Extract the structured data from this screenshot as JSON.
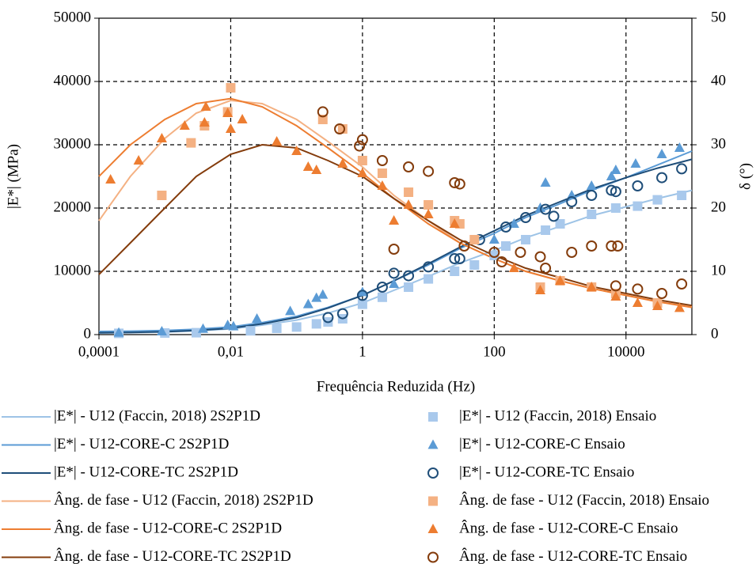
{
  "chart_data": {
    "type": "line",
    "xlabel": "Frequência Reduzida (Hz)",
    "ylabel": "|E*| (MPa)",
    "y2label": "δ (°)",
    "xscale": "log",
    "grid": true,
    "xlim": [
      0.0001,
      100000
    ],
    "xticks": [
      {
        "value": 0.0001,
        "label": "0,0001"
      },
      {
        "value": 0.01,
        "label": "0,01"
      },
      1,
      100,
      10000
    ],
    "ylim": [
      0,
      50000
    ],
    "yticks": [
      0,
      10000,
      20000,
      30000,
      40000,
      50000
    ],
    "y2lim": [
      0,
      50
    ],
    "y2ticks": [
      0,
      10,
      20,
      30,
      40,
      50
    ],
    "series": [
      {
        "name": "|E*| - U12 (Faccin, 2018) 2S2P1D",
        "color": "#9dc3e6",
        "marker": "line",
        "axis": "y",
        "x": [
          0.0001,
          0.0003,
          0.001,
          0.003,
          0.01,
          0.03,
          0.1,
          0.3,
          1,
          3,
          10,
          30,
          100,
          300,
          1000,
          3000,
          10000,
          30000,
          100000
        ],
        "values": [
          250,
          300,
          400,
          600,
          900,
          1500,
          2300,
          3400,
          5000,
          7000,
          9200,
          11300,
          13300,
          15300,
          17100,
          18800,
          20200,
          21500,
          22800
        ]
      },
      {
        "name": "|E*| - U12-CORE-C 2S2P1D",
        "color": "#5b9bd5",
        "marker": "line",
        "axis": "y",
        "x": [
          0.0001,
          0.0003,
          0.001,
          0.003,
          0.01,
          0.03,
          0.1,
          0.3,
          1,
          3,
          10,
          30,
          100,
          300,
          1000,
          3000,
          10000,
          30000,
          100000
        ],
        "values": [
          500,
          550,
          650,
          850,
          1200,
          1900,
          2900,
          4300,
          6200,
          8500,
          11000,
          13600,
          16000,
          18500,
          20700,
          22800,
          24800,
          26800,
          29000
        ]
      },
      {
        "name": "|E*| - U12-CORE-TC 2S2P1D",
        "color": "#1f4e79",
        "marker": "line",
        "axis": "y",
        "x": [
          0.0001,
          0.0003,
          0.001,
          0.003,
          0.01,
          0.03,
          0.1,
          0.3,
          1,
          3,
          10,
          30,
          100,
          300,
          1000,
          3000,
          10000,
          30000,
          100000
        ],
        "values": [
          300,
          350,
          450,
          650,
          1000,
          1700,
          2700,
          4200,
          6200,
          8500,
          11200,
          13800,
          16400,
          18800,
          21000,
          23000,
          24800,
          26300,
          27700
        ]
      },
      {
        "name": "Âng. de fase - U12 (Faccin, 2018) 2S2P1D",
        "color": "#f4b183",
        "marker": "line",
        "axis": "y2",
        "x": [
          0.0001,
          0.0003,
          0.001,
          0.003,
          0.01,
          0.03,
          0.1,
          0.3,
          1,
          3,
          10,
          30,
          100,
          300,
          1000,
          3000,
          10000,
          30000,
          100000
        ],
        "values": [
          18,
          25,
          31,
          35,
          37,
          36.5,
          34,
          30.5,
          26.5,
          22,
          18,
          14.5,
          12,
          10,
          8.5,
          7.3,
          6.2,
          5.2,
          4.4
        ]
      },
      {
        "name": "Âng. de fase - U12-CORE-C 2S2P1D",
        "color": "#ed7d31",
        "marker": "line",
        "axis": "y2",
        "x": [
          0.0001,
          0.0003,
          0.001,
          0.003,
          0.01,
          0.03,
          0.1,
          0.3,
          1,
          3,
          10,
          30,
          100,
          300,
          1000,
          3000,
          10000,
          30000,
          100000
        ],
        "values": [
          25,
          30,
          34,
          36.5,
          37.3,
          36,
          33,
          29.5,
          25.5,
          21.5,
          17.5,
          14.5,
          12,
          10,
          8.5,
          7.3,
          6.2,
          5.2,
          4.3
        ]
      },
      {
        "name": "Âng. de fase - U12-CORE-TC 2S2P1D",
        "color": "#843c0c",
        "marker": "line",
        "axis": "y2",
        "x": [
          0.0001,
          0.0003,
          0.001,
          0.003,
          0.01,
          0.03,
          0.1,
          0.3,
          1,
          3,
          10,
          30,
          100,
          300,
          1000,
          3000,
          10000,
          30000,
          100000
        ],
        "values": [
          9.5,
          14.5,
          20,
          25,
          28.5,
          30,
          29.5,
          27.5,
          25,
          21.5,
          18,
          15,
          12.5,
          10.5,
          9,
          7.6,
          6.5,
          5.5,
          4.6
        ]
      },
      {
        "name": "|E*| - U12 (Faccin, 2018)  Ensaio",
        "color": "#a9c9ec",
        "marker": "square",
        "axis": "y",
        "x": [
          0.0002,
          0.001,
          0.003,
          0.02,
          0.05,
          0.1,
          0.2,
          0.3,
          0.5,
          1,
          2,
          5,
          10,
          25,
          50,
          100,
          150,
          300,
          600,
          1000,
          3000,
          7000,
          15000,
          30000,
          70000
        ],
        "values": [
          200,
          250,
          300,
          600,
          1000,
          1200,
          1700,
          2000,
          2500,
          4800,
          5900,
          7500,
          8800,
          10000,
          11000,
          12500,
          14000,
          15000,
          16500,
          17500,
          19000,
          20000,
          20300,
          21300,
          22000
        ]
      },
      {
        "name": "|E*| - U12-CORE-C Ensaio",
        "color": "#5b9bd5",
        "marker": "triangle",
        "axis": "y",
        "x": [
          0.0002,
          0.0009,
          0.0038,
          0.009,
          0.011,
          0.025,
          0.08,
          0.15,
          0.2,
          0.25,
          1,
          3,
          100,
          200,
          500,
          600,
          1500,
          3000,
          6000,
          7000,
          14000,
          35000,
          65000
        ],
        "values": [
          300,
          500,
          900,
          1500,
          1300,
          2500,
          3700,
          4800,
          5800,
          6300,
          6700,
          8000,
          15000,
          17500,
          20000,
          24000,
          22000,
          23500,
          25000,
          26000,
          27000,
          28500,
          29500
        ]
      },
      {
        "name": "|E*| - U12-CORE-TC Ensaio",
        "color": "#1f4e79",
        "marker": "circle",
        "axis": "y",
        "x": [
          0.3,
          0.5,
          1,
          2,
          3,
          5,
          10,
          25,
          30,
          60,
          150,
          300,
          600,
          800,
          1500,
          3000,
          6000,
          7000,
          15000,
          35000,
          70000
        ],
        "values": [
          2700,
          3300,
          6200,
          7500,
          9700,
          9300,
          10700,
          12000,
          12000,
          15000,
          17000,
          18500,
          19800,
          18700,
          21000,
          22000,
          22800,
          22600,
          23500,
          24800,
          26200
        ]
      },
      {
        "name": "Âng. de fase - U12 (Faccin, 2018) Ensaio",
        "color": "#f4b183",
        "marker": "square",
        "axis": "y2",
        "x": [
          0.0009,
          0.0025,
          0.004,
          0.009,
          0.01,
          0.25,
          0.5,
          1,
          2,
          5,
          10,
          25,
          30,
          50,
          500,
          1000,
          3000,
          7000,
          30000
        ],
        "values": [
          22,
          30.3,
          33,
          35.2,
          39,
          34,
          32.5,
          27.5,
          25.5,
          22.5,
          20.5,
          18,
          17.5,
          15,
          7.5,
          8.5,
          7.5,
          6.5,
          5
        ]
      },
      {
        "name": "Âng. de fase - U12-CORE-C Ensaio",
        "color": "#ed7d31",
        "marker": "triangle",
        "axis": "y2",
        "x": [
          0.00015,
          0.0004,
          0.0009,
          0.002,
          0.004,
          0.0042,
          0.009,
          0.01,
          0.015,
          0.05,
          0.1,
          0.15,
          0.2,
          0.5,
          1,
          2,
          3,
          5,
          10,
          25,
          200,
          500,
          1000,
          3000,
          7000,
          15000,
          30000,
          65000
        ],
        "values": [
          24.5,
          27.5,
          31,
          33,
          33.5,
          36,
          35,
          32.5,
          34,
          30.5,
          29,
          26.5,
          26,
          27,
          25.5,
          23.5,
          18,
          20.5,
          19,
          17.5,
          10.5,
          7,
          8.5,
          7.5,
          6,
          5,
          4.5,
          4.2
        ]
      },
      {
        "name": "Âng. de fase - U12-CORE-TC Ensaio",
        "color": "#843c0c",
        "marker": "circle",
        "axis": "y2",
        "x": [
          0.25,
          0.45,
          0.9,
          1,
          2,
          3,
          5,
          10,
          25,
          30,
          35,
          100,
          130,
          250,
          500,
          600,
          1500,
          3000,
          6000,
          7500,
          7000,
          15000,
          35000,
          70000
        ],
        "values": [
          35.2,
          32.5,
          29.8,
          30.8,
          27.5,
          13.5,
          26.5,
          25.8,
          24,
          23.8,
          14,
          13,
          11.5,
          13,
          12.3,
          10.5,
          13,
          14,
          14,
          14,
          7.7,
          7.2,
          6.5,
          8
        ]
      }
    ]
  }
}
